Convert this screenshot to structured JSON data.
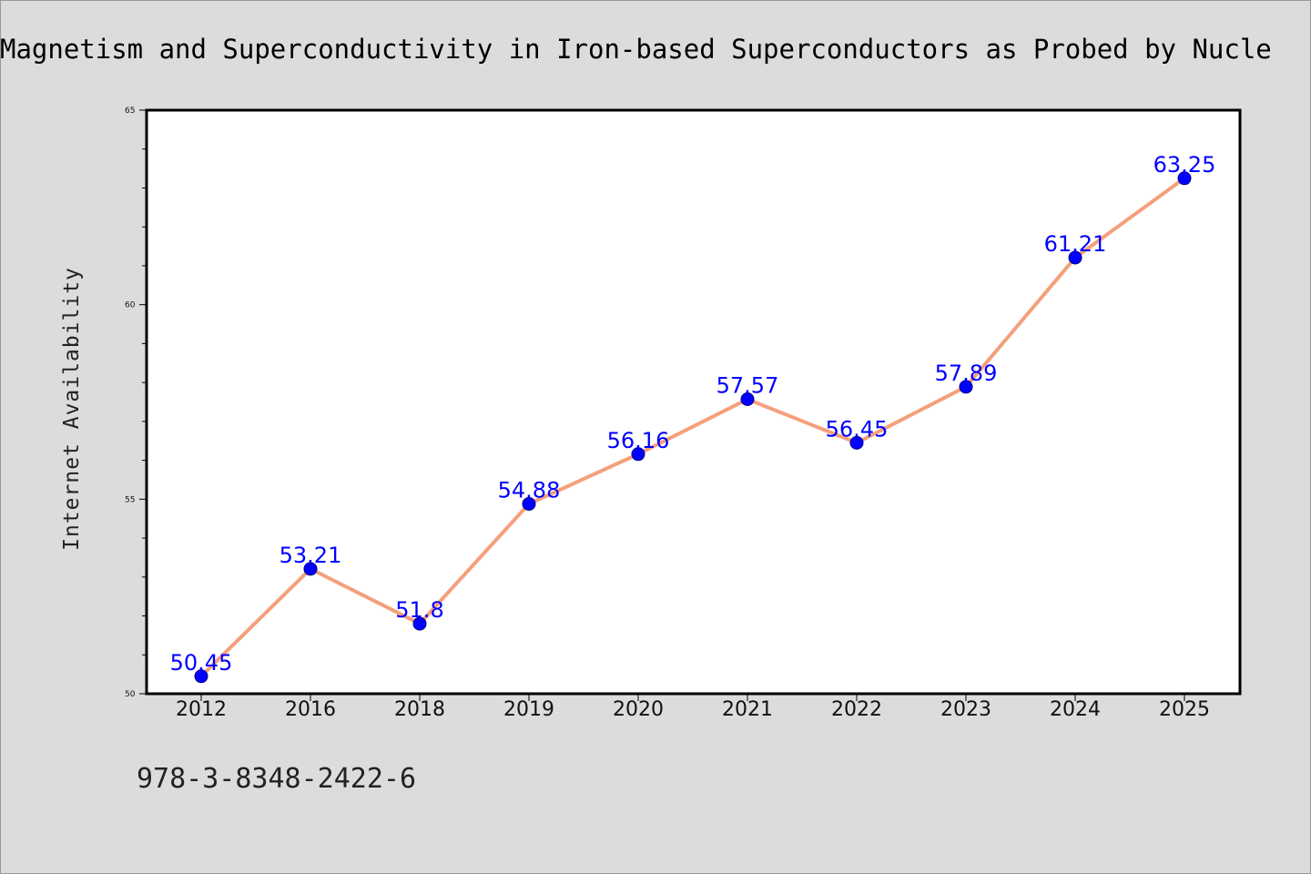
{
  "chart_data": {
    "type": "line",
    "title": "Magnetism and Superconductivity in Iron-based Superconductors as Probed by Nucle",
    "xlabel": "",
    "ylabel": "Internet Availability",
    "categories": [
      "2012",
      "2016",
      "2018",
      "2019",
      "2020",
      "2021",
      "2022",
      "2023",
      "2024",
      "2025"
    ],
    "series": [
      {
        "values": [
          50.45,
          53.21,
          51.8,
          54.88,
          56.16,
          57.57,
          56.45,
          57.89,
          61.21,
          63.25
        ],
        "labels": [
          "50.45",
          "53.21",
          "51.8",
          "54.88",
          "56.16",
          "57.57",
          "56.45",
          "57.89",
          "61.21",
          "63.25"
        ],
        "line_color": "#f4a07c",
        "marker_color": "#0000ff"
      }
    ],
    "ylim": [
      50,
      65
    ],
    "yticks": [
      "50",
      "55",
      "60",
      "65"
    ],
    "grid": false,
    "legend": "none"
  },
  "footnote": "978-3-8348-2422-6"
}
